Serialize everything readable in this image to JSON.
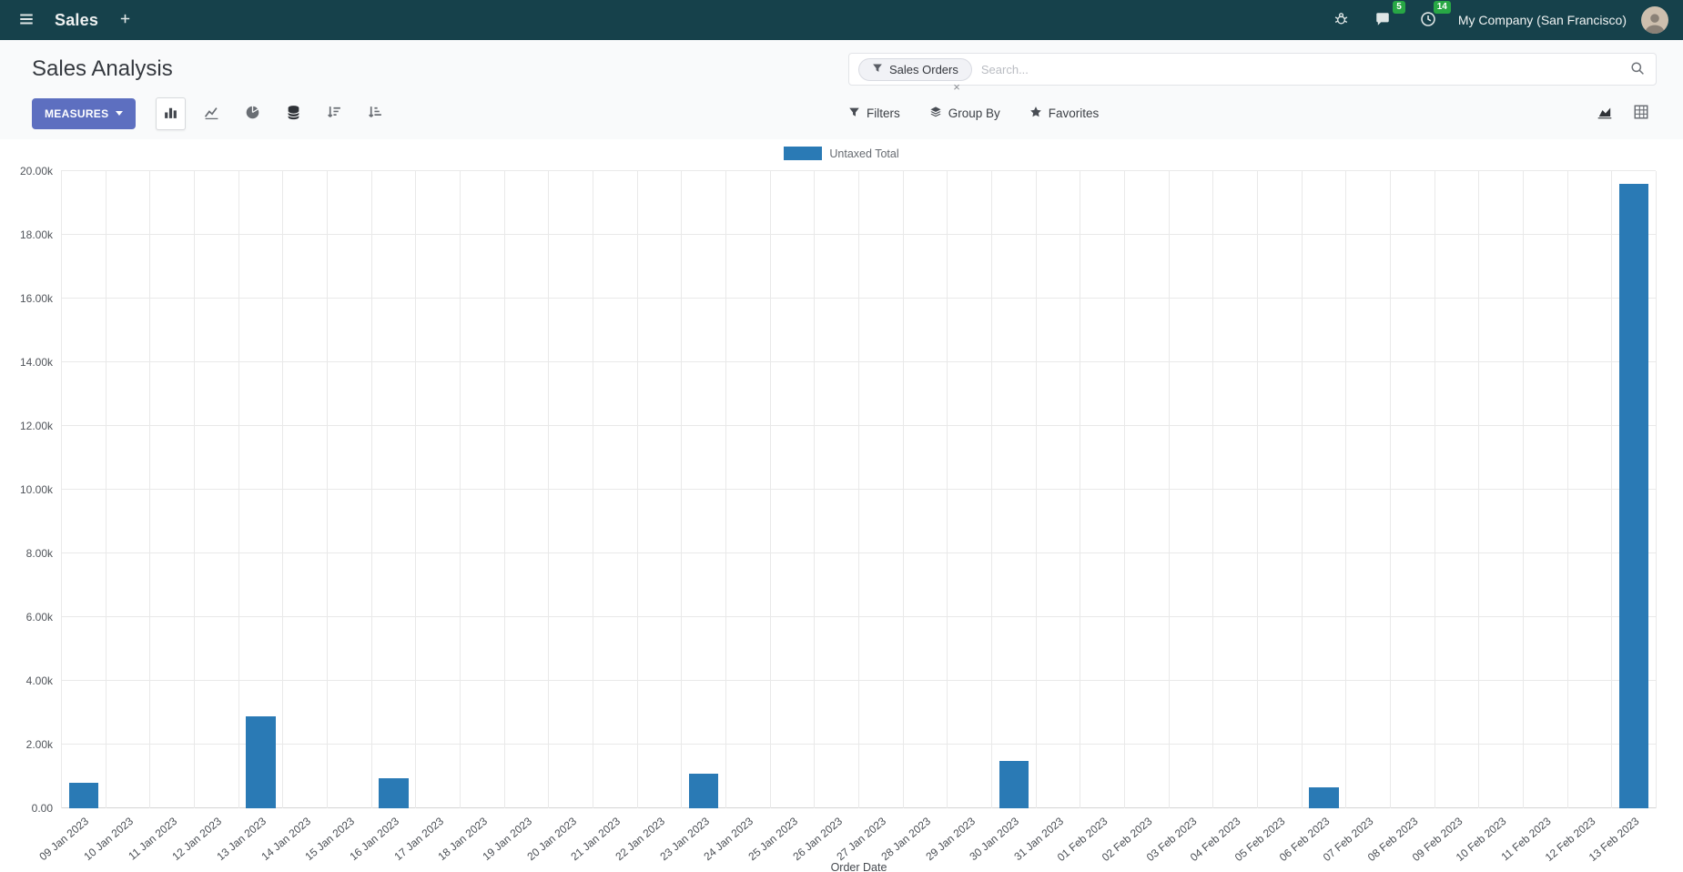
{
  "navbar": {
    "app_name": "Sales",
    "company_name": "My Company (San Francisco)",
    "badges": {
      "messages": "5",
      "activities": "14"
    }
  },
  "header": {
    "title": "Sales Analysis",
    "search": {
      "facet_label": "Sales Orders",
      "facet_remove": "×",
      "placeholder": "Search..."
    }
  },
  "toolbar": {
    "measures": "MEASURES",
    "filters": "Filters",
    "group_by": "Group By",
    "favorites": "Favorites"
  },
  "colors": {
    "navbar_bg": "#16414b",
    "primary_button": "#5d6fc0",
    "bar": "#2a7ab5",
    "badge_green": "#28a745"
  },
  "chart_data": {
    "type": "bar",
    "title": "",
    "legend": [
      "Untaxed Total"
    ],
    "legend_position": "top",
    "xlabel": "Order Date",
    "ylabel": "",
    "grid": true,
    "ylim": [
      0,
      20000
    ],
    "yticks": [
      "0.00",
      "2.00k",
      "4.00k",
      "6.00k",
      "8.00k",
      "10.00k",
      "12.00k",
      "14.00k",
      "16.00k",
      "18.00k",
      "20.00k"
    ],
    "bar_color": "#2a7ab5",
    "categories": [
      "09 Jan 2023",
      "10 Jan 2023",
      "11 Jan 2023",
      "12 Jan 2023",
      "13 Jan 2023",
      "14 Jan 2023",
      "15 Jan 2023",
      "16 Jan 2023",
      "17 Jan 2023",
      "18 Jan 2023",
      "19 Jan 2023",
      "20 Jan 2023",
      "21 Jan 2023",
      "22 Jan 2023",
      "23 Jan 2023",
      "24 Jan 2023",
      "25 Jan 2023",
      "26 Jan 2023",
      "27 Jan 2023",
      "28 Jan 2023",
      "29 Jan 2023",
      "30 Jan 2023",
      "31 Jan 2023",
      "01 Feb 2023",
      "02 Feb 2023",
      "03 Feb 2023",
      "04 Feb 2023",
      "05 Feb 2023",
      "06 Feb 2023",
      "07 Feb 2023",
      "08 Feb 2023",
      "09 Feb 2023",
      "10 Feb 2023",
      "11 Feb 2023",
      "12 Feb 2023",
      "13 Feb 2023"
    ],
    "series": [
      {
        "name": "Untaxed Total",
        "values": [
          800,
          0,
          0,
          0,
          2900,
          0,
          0,
          950,
          0,
          0,
          0,
          0,
          0,
          0,
          1100,
          0,
          0,
          0,
          0,
          0,
          0,
          1500,
          0,
          0,
          0,
          0,
          0,
          0,
          650,
          0,
          0,
          0,
          0,
          0,
          0,
          19600
        ]
      }
    ],
    "values": [
      800,
      0,
      0,
      0,
      2900,
      0,
      0,
      950,
      0,
      0,
      0,
      0,
      0,
      0,
      1100,
      0,
      0,
      0,
      0,
      0,
      0,
      1500,
      0,
      0,
      0,
      0,
      0,
      0,
      650,
      0,
      0,
      0,
      0,
      0,
      0,
      19600
    ]
  }
}
